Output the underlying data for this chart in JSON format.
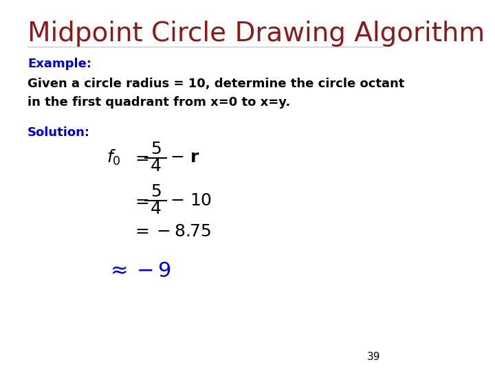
{
  "title": "Midpoint Circle Drawing Algorithm",
  "title_color": "#8B1A1A",
  "title_fontsize": 28,
  "example_label": "Example:",
  "example_color": "#0000CC",
  "example_fontsize": 13,
  "body_line1": "Given a circle radius = 10, determine the circle octant",
  "body_line2": "in the first quadrant from x=0 to x=y.",
  "body_color": "#000000",
  "body_fontsize": 13,
  "solution_label": "Solution:",
  "solution_color": "#0000CC",
  "solution_fontsize": 13,
  "math_color": "#000000",
  "approx_color": "#0000CC",
  "page_number": "39",
  "page_color": "#000000",
  "page_fontsize": 11,
  "bg_color": "#FFFFFF"
}
